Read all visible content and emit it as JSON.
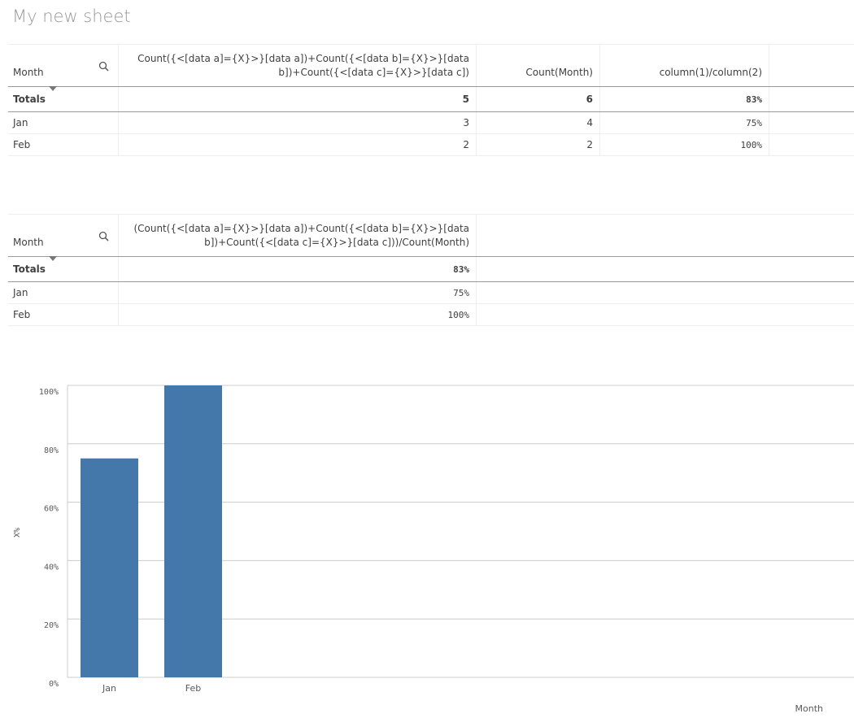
{
  "header": {
    "title": "My new sheet"
  },
  "tables": [
    {
      "headers": [
        "Month",
        "Count({<[data a]={X}>}[data a])+Count({<[data b]={X}>}[data b])+Count({<[data c]={X}>}[data c])",
        "Count(Month)",
        "column(1)/column(2)"
      ],
      "totals": [
        "Totals",
        "5",
        "6",
        "83%"
      ],
      "rows": [
        [
          "Jan",
          "3",
          "4",
          "75%"
        ],
        [
          "Feb",
          "2",
          "2",
          "100%"
        ]
      ]
    },
    {
      "headers": [
        "Month",
        "(Count({<[data a]={X}>}[data a])+Count({<[data b]={X}>}[data b])+Count({<[data c]={X}>}[data c]))/Count(Month)"
      ],
      "totals": [
        "Totals",
        "83%"
      ],
      "rows": [
        [
          "Jan",
          "75%"
        ],
        [
          "Feb",
          "100%"
        ]
      ]
    }
  ],
  "chart_data": {
    "type": "bar",
    "x_label": "Month",
    "y_label": "X%",
    "categories": [
      "Jan",
      "Feb"
    ],
    "values": [
      75,
      100
    ],
    "color": "#4477aa",
    "ylim": [
      0,
      100
    ],
    "yticks": [
      {
        "value": 0,
        "label": "0%"
      },
      {
        "value": 20,
        "label": "20%"
      },
      {
        "value": 40,
        "label": "40%"
      },
      {
        "value": 60,
        "label": "60%"
      },
      {
        "value": 80,
        "label": "80%"
      },
      {
        "value": 100,
        "label": "100%"
      }
    ],
    "grid": true
  }
}
